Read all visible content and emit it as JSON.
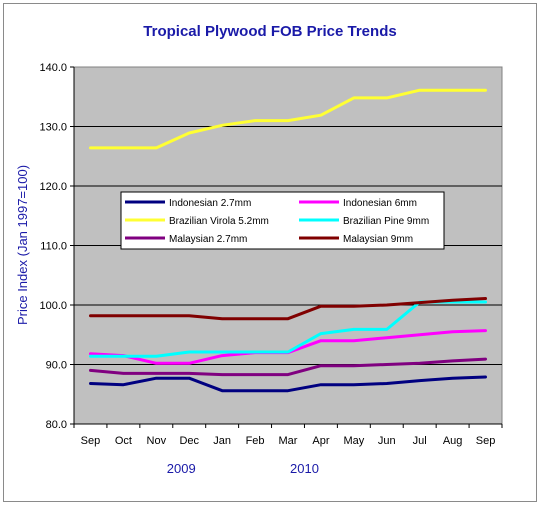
{
  "chart_data": {
    "type": "line",
    "title": "Tropical Plywood FOB Price Trends",
    "ylabel": "Price Index (Jan 1997=100)",
    "xlabel": "",
    "ylim": [
      80,
      140
    ],
    "yticks": [
      "80.0",
      "90.0",
      "100.0",
      "110.0",
      "120.0",
      "130.0",
      "140.0"
    ],
    "grid": "horizontal",
    "legend_position": "center-left inside plot",
    "categories": [
      "Sep",
      "Oct",
      "Nov",
      "Dec",
      "Jan",
      "Feb",
      "Mar",
      "Apr",
      "May",
      "Jun",
      "Jul",
      "Aug",
      "Sep"
    ],
    "year_labels": [
      "2009",
      "2010"
    ],
    "series": [
      {
        "name": "Indonesian 2.7mm",
        "color": "#000080",
        "values": [
          86.8,
          86.6,
          87.7,
          87.7,
          85.6,
          85.6,
          85.6,
          86.6,
          86.6,
          86.8,
          87.3,
          87.7,
          87.9
        ]
      },
      {
        "name": "Indonesian 6mm",
        "color": "#ff00ff",
        "values": [
          91.8,
          91.5,
          90.2,
          90.2,
          91.5,
          92.0,
          92.0,
          94.0,
          94.0,
          94.5,
          95.0,
          95.5,
          95.7
        ]
      },
      {
        "name": "Brazilian Virola 5.2mm",
        "color": "#ffff33",
        "values": [
          126.4,
          126.4,
          126.4,
          128.9,
          130.2,
          131.0,
          131.0,
          131.9,
          134.8,
          134.8,
          136.1,
          136.1,
          136.1
        ]
      },
      {
        "name": "Brazilian Pine 9mm",
        "color": "#00ffff",
        "values": [
          91.4,
          91.4,
          91.4,
          92.1,
          92.1,
          92.1,
          92.1,
          95.2,
          95.9,
          95.9,
          100.5,
          100.5,
          100.5
        ]
      },
      {
        "name": "Malaysian 2.7mm",
        "color": "#800080",
        "values": [
          89.0,
          88.5,
          88.5,
          88.5,
          88.3,
          88.3,
          88.3,
          89.8,
          89.8,
          90.0,
          90.2,
          90.6,
          90.9
        ]
      },
      {
        "name": "Malaysian 9mm",
        "color": "#800000",
        "values": [
          98.2,
          98.2,
          98.2,
          98.2,
          97.7,
          97.7,
          97.7,
          99.8,
          99.8,
          100.0,
          100.4,
          100.8,
          101.1
        ]
      }
    ]
  }
}
